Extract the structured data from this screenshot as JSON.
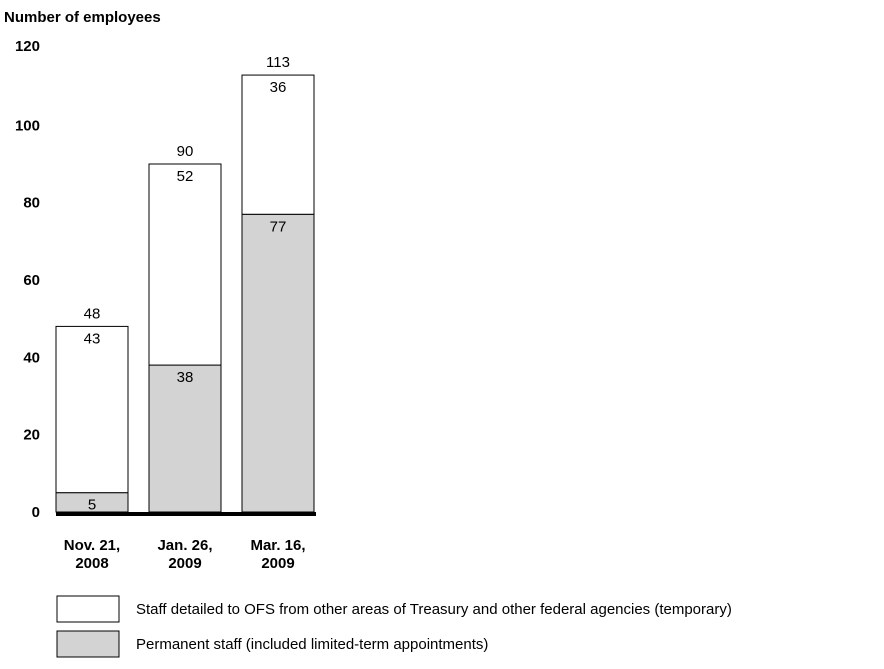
{
  "chart_data": {
    "type": "bar",
    "stacked": true,
    "ylabel": "Number of employees",
    "ylim": [
      0,
      120
    ],
    "yticks": [
      0,
      20,
      40,
      60,
      80,
      100,
      120
    ],
    "categories": [
      [
        "Nov. 21,",
        "2008"
      ],
      [
        "Jan. 26,",
        "2009"
      ],
      [
        "Mar. 16,",
        "2009"
      ]
    ],
    "series": [
      {
        "name": "Permanent staff (included limited-term appointments)",
        "color": "#d3d3d3",
        "values": [
          5,
          38,
          77
        ]
      },
      {
        "name": "Staff detailed to OFS from other areas of Treasury and other federal agencies (temporary)",
        "color": "#ffffff",
        "values": [
          43,
          52,
          36
        ]
      }
    ],
    "totals": [
      48,
      90,
      113
    ],
    "legend_order": [
      1,
      0
    ]
  }
}
